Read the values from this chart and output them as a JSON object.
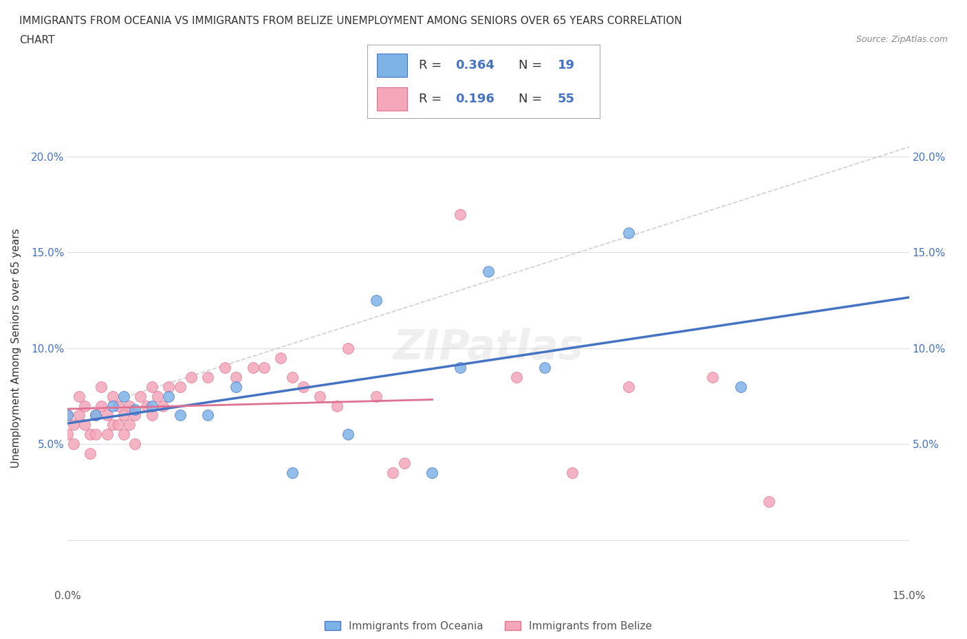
{
  "title_line1": "IMMIGRANTS FROM OCEANIA VS IMMIGRANTS FROM BELIZE UNEMPLOYMENT AMONG SENIORS OVER 65 YEARS CORRELATION",
  "title_line2": "CHART",
  "source": "Source: ZipAtlas.com",
  "ylabel": "Unemployment Among Seniors over 65 years",
  "xlim": [
    0.0,
    0.15
  ],
  "ylim": [
    -0.025,
    0.225
  ],
  "color_oceania": "#7EB3E8",
  "color_belize": "#F4A7B9",
  "line_color_oceania": "#4472C4",
  "line_color_belize": "#E07090",
  "line_color_dashed": "#BBBBBB",
  "watermark": "ZIPatlas",
  "oceania_x": [
    0.0,
    0.005,
    0.008,
    0.01,
    0.012,
    0.015,
    0.018,
    0.02,
    0.025,
    0.03,
    0.04,
    0.05,
    0.055,
    0.065,
    0.07,
    0.075,
    0.085,
    0.1,
    0.12
  ],
  "oceania_y": [
    0.065,
    0.065,
    0.07,
    0.075,
    0.068,
    0.07,
    0.075,
    0.065,
    0.065,
    0.08,
    0.035,
    0.055,
    0.125,
    0.035,
    0.09,
    0.14,
    0.09,
    0.16,
    0.08
  ],
  "belize_x": [
    0.0,
    0.0,
    0.001,
    0.001,
    0.002,
    0.002,
    0.003,
    0.003,
    0.004,
    0.004,
    0.005,
    0.005,
    0.006,
    0.006,
    0.007,
    0.007,
    0.008,
    0.008,
    0.009,
    0.009,
    0.01,
    0.01,
    0.011,
    0.011,
    0.012,
    0.012,
    0.013,
    0.014,
    0.015,
    0.015,
    0.016,
    0.017,
    0.018,
    0.02,
    0.022,
    0.025,
    0.028,
    0.03,
    0.033,
    0.035,
    0.038,
    0.04,
    0.042,
    0.045,
    0.048,
    0.05,
    0.055,
    0.058,
    0.06,
    0.07,
    0.08,
    0.09,
    0.1,
    0.115,
    0.125
  ],
  "belize_y": [
    0.065,
    0.055,
    0.06,
    0.05,
    0.075,
    0.065,
    0.07,
    0.06,
    0.055,
    0.045,
    0.065,
    0.055,
    0.08,
    0.07,
    0.065,
    0.055,
    0.075,
    0.06,
    0.07,
    0.06,
    0.065,
    0.055,
    0.07,
    0.06,
    0.065,
    0.05,
    0.075,
    0.07,
    0.08,
    0.065,
    0.075,
    0.07,
    0.08,
    0.08,
    0.085,
    0.085,
    0.09,
    0.085,
    0.09,
    0.09,
    0.095,
    0.085,
    0.08,
    0.075,
    0.07,
    0.1,
    0.075,
    0.035,
    0.04,
    0.17,
    0.085,
    0.035,
    0.08,
    0.085,
    0.02
  ],
  "background_color": "#FFFFFF",
  "grid_color": "#DDDDDD"
}
